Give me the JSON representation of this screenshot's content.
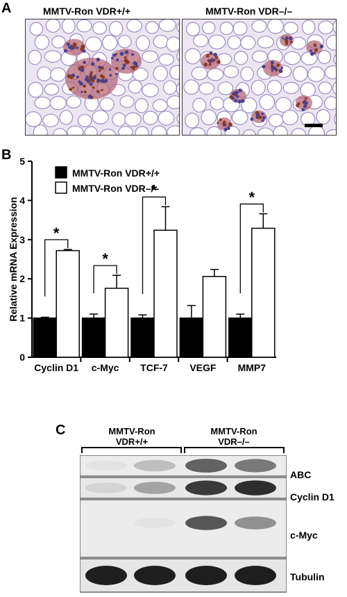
{
  "panel_a": {
    "letter": "A",
    "left_title": "MMTV-Ron VDR+/+",
    "right_title": "MMTV-Ron VDR–/–",
    "colors": {
      "stroma": "#ece6f2",
      "adipocyte": "#ffffff",
      "cell_wall": "#9c8cc2",
      "nucleus": "#4a3f8c",
      "brown_stain": "#8a3a1e",
      "scale_bar": "#000000"
    }
  },
  "panel_b": {
    "letter": "B",
    "significance_marker": "*"
  },
  "chart_data": {
    "type": "bar",
    "categories": [
      "Cyclin D1",
      "c-Myc",
      "TCF-7",
      "VEGF",
      "MMP7"
    ],
    "ylabel": "Relative mRNA Expression",
    "ylim": [
      0,
      5
    ],
    "yticks": [
      "0",
      "1",
      "2",
      "3",
      "4",
      "5"
    ],
    "legend_position": "top-left",
    "series": [
      {
        "name": "MMTV-Ron VDR+/+",
        "color": "#000000",
        "values": [
          1.0,
          1.0,
          1.0,
          1.0,
          1.0
        ],
        "errors": [
          0.02,
          0.1,
          0.08,
          0.32,
          0.1
        ]
      },
      {
        "name": "MMTV-Ron VDR–/–",
        "color": "#ffffff",
        "values": [
          2.72,
          1.76,
          3.24,
          2.06,
          3.29
        ],
        "errors": [
          0.03,
          0.33,
          0.6,
          0.18,
          0.37
        ]
      }
    ],
    "significant": [
      true,
      true,
      true,
      false,
      true
    ]
  },
  "panel_c": {
    "letter": "C",
    "group_left": [
      "MMTV-Ron",
      "VDR+/+"
    ],
    "group_right": [
      "MMTV-Ron",
      "VDR–/–"
    ],
    "rows": [
      {
        "label": "ABC",
        "intensities": [
          0.05,
          0.3,
          0.75,
          0.65
        ]
      },
      {
        "label": "Cyclin D1",
        "intensities": [
          0.15,
          0.45,
          0.9,
          0.95
        ]
      },
      {
        "label": "c-Myc",
        "intensities": [
          0.02,
          0.05,
          0.8,
          0.55
        ]
      },
      {
        "label": "Tubulin",
        "intensities": [
          1.0,
          1.0,
          1.0,
          1.0
        ]
      }
    ]
  }
}
